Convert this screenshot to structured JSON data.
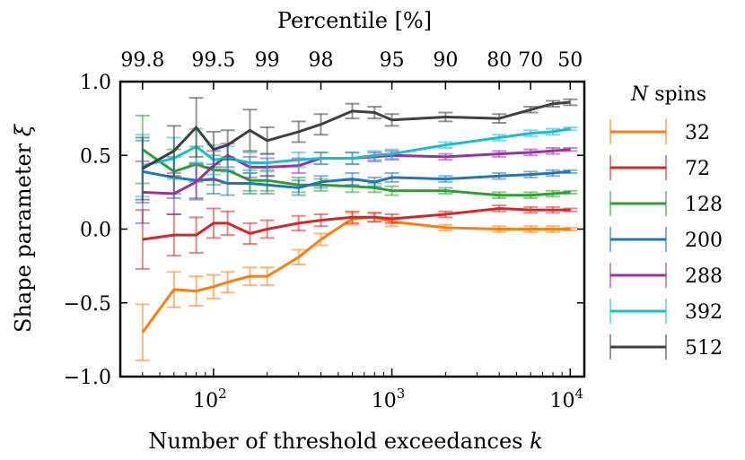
{
  "chart_data": {
    "type": "line",
    "xscale": "log",
    "xlabel": "Number of threshold exceedances",
    "xlabel_var": "k",
    "ylabel": "Shape parameter",
    "ylabel_var": "ξ",
    "top_axis_label": "Percentile [%]",
    "xlim": [
      30,
      12000
    ],
    "ylim": [
      -1.0,
      1.0
    ],
    "grid": false,
    "legend_position": "right, outside",
    "legend_title_var": "N",
    "legend_title_rest": "spins",
    "x_ticks": [
      {
        "value": 100,
        "base": "10",
        "exp": "2"
      },
      {
        "value": 1000,
        "base": "10",
        "exp": "3"
      },
      {
        "value": 10000,
        "base": "10",
        "exp": "4"
      }
    ],
    "y_ticks": [
      {
        "value": 1.0,
        "label": "1.0"
      },
      {
        "value": 0.5,
        "label": "0.5"
      },
      {
        "value": 0.0,
        "label": "0.0"
      },
      {
        "value": -0.5,
        "label": "−0.5"
      },
      {
        "value": -1.0,
        "label": "−1.0"
      }
    ],
    "top_ticks": [
      {
        "k": 40,
        "label": "99.8"
      },
      {
        "k": 100,
        "label": "99.5"
      },
      {
        "k": 200,
        "label": "99"
      },
      {
        "k": 400,
        "label": "98"
      },
      {
        "k": 1000,
        "label": "95"
      },
      {
        "k": 2000,
        "label": "90"
      },
      {
        "k": 4000,
        "label": "80"
      },
      {
        "k": 6000,
        "label": "70"
      },
      {
        "k": 10000,
        "label": "50"
      }
    ],
    "x": [
      40,
      60,
      80,
      100,
      120,
      160,
      200,
      300,
      400,
      600,
      800,
      1000,
      2000,
      4000,
      6000,
      8000,
      10000
    ],
    "series": [
      {
        "name": "32",
        "color": "#ff7f0e",
        "values": [
          -0.7,
          -0.41,
          -0.42,
          -0.39,
          -0.36,
          -0.32,
          -0.32,
          -0.19,
          -0.07,
          0.07,
          0.08,
          0.05,
          0.01,
          0.0,
          0.0,
          0.0,
          0.0
        ],
        "errors": [
          0.19,
          0.12,
          0.1,
          0.08,
          0.07,
          0.06,
          0.06,
          0.05,
          0.04,
          0.04,
          0.03,
          0.03,
          0.02,
          0.02,
          0.02,
          0.02,
          0.01
        ]
      },
      {
        "name": "72",
        "color": "#d62728",
        "values": [
          -0.07,
          -0.04,
          -0.04,
          0.04,
          0.04,
          -0.03,
          0.0,
          0.04,
          0.06,
          0.08,
          0.08,
          0.07,
          0.1,
          0.14,
          0.13,
          0.13,
          0.13
        ],
        "errors": [
          0.2,
          0.14,
          0.12,
          0.1,
          0.08,
          0.07,
          0.06,
          0.05,
          0.04,
          0.04,
          0.03,
          0.03,
          0.02,
          0.02,
          0.02,
          0.02,
          0.01
        ]
      },
      {
        "name": "128",
        "color": "#2ca02c",
        "values": [
          0.54,
          0.39,
          0.44,
          0.4,
          0.4,
          0.33,
          0.33,
          0.3,
          0.3,
          0.29,
          0.28,
          0.26,
          0.26,
          0.23,
          0.23,
          0.24,
          0.25
        ],
        "errors": [
          0.23,
          0.15,
          0.12,
          0.1,
          0.09,
          0.07,
          0.07,
          0.05,
          0.04,
          0.04,
          0.03,
          0.03,
          0.02,
          0.02,
          0.02,
          0.02,
          0.01
        ]
      },
      {
        "name": "200",
        "color": "#1f77b4",
        "values": [
          0.39,
          0.35,
          0.33,
          0.34,
          0.31,
          0.31,
          0.3,
          0.28,
          0.32,
          0.34,
          0.32,
          0.35,
          0.34,
          0.36,
          0.37,
          0.38,
          0.39
        ],
        "errors": [
          0.21,
          0.14,
          0.12,
          0.1,
          0.08,
          0.07,
          0.06,
          0.05,
          0.04,
          0.04,
          0.03,
          0.03,
          0.02,
          0.02,
          0.02,
          0.02,
          0.01
        ]
      },
      {
        "name": "288",
        "color": "#9b30a2",
        "values": [
          0.25,
          0.24,
          0.32,
          0.43,
          0.5,
          0.42,
          0.42,
          0.43,
          0.48,
          0.48,
          0.49,
          0.5,
          0.49,
          0.51,
          0.52,
          0.53,
          0.54
        ],
        "errors": [
          0.21,
          0.14,
          0.12,
          0.1,
          0.08,
          0.07,
          0.06,
          0.05,
          0.04,
          0.04,
          0.03,
          0.03,
          0.02,
          0.02,
          0.02,
          0.02,
          0.01
        ]
      },
      {
        "name": "392",
        "color": "#17becf",
        "values": [
          0.43,
          0.48,
          0.56,
          0.47,
          0.48,
          0.45,
          0.45,
          0.47,
          0.48,
          0.48,
          0.5,
          0.51,
          0.57,
          0.62,
          0.65,
          0.66,
          0.68
        ],
        "errors": [
          0.21,
          0.14,
          0.12,
          0.1,
          0.08,
          0.07,
          0.06,
          0.05,
          0.04,
          0.04,
          0.03,
          0.03,
          0.02,
          0.02,
          0.02,
          0.02,
          0.01
        ]
      },
      {
        "name": "512",
        "color": "#404040",
        "values": [
          0.41,
          0.53,
          0.69,
          0.54,
          0.57,
          0.67,
          0.6,
          0.66,
          0.71,
          0.8,
          0.79,
          0.74,
          0.76,
          0.75,
          0.81,
          0.85,
          0.86
        ],
        "errors": [
          0.21,
          0.17,
          0.2,
          0.12,
          0.1,
          0.14,
          0.09,
          0.07,
          0.07,
          0.05,
          0.04,
          0.04,
          0.03,
          0.03,
          0.02,
          0.02,
          0.02
        ]
      }
    ]
  }
}
